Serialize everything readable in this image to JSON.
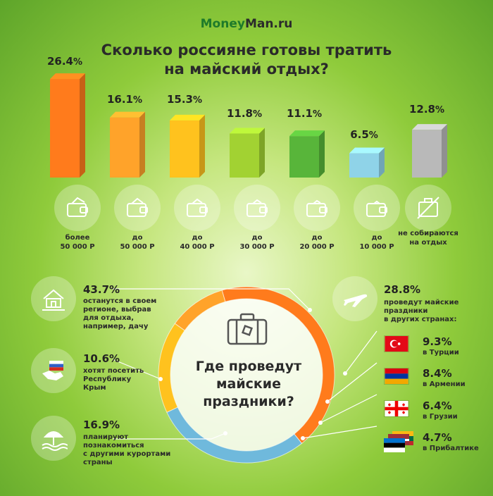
{
  "brand": {
    "part1": "Money",
    "part2": "Man.ru"
  },
  "title_line1": "Сколько россияне готовы тратить",
  "title_line2": "на майский отдых?",
  "colors": {
    "orange": "#ff7b1c",
    "lightorange": "#ffa32a",
    "yellow": "#ffc21e",
    "lightgreen": "#a2d232",
    "green": "#58b53a",
    "blue": "#8fd3e8",
    "gray": "#b9b9b9"
  },
  "chart_data": [
    {
      "type": "bar",
      "title": "Сколько россияне готовы тратить на майский отдых?",
      "categories": [
        {
          "line1": "более",
          "line2": "50 000 Р"
        },
        {
          "line1": "до",
          "line2": "50 000 Р"
        },
        {
          "line1": "до",
          "line2": "40 000 Р"
        },
        {
          "line1": "до",
          "line2": "30 000 Р"
        },
        {
          "line1": "до",
          "line2": "20 000 Р"
        },
        {
          "line1": "до",
          "line2": "10 000 Р"
        },
        {
          "line1": "не собираются",
          "line2": "на отдых"
        }
      ],
      "values": [
        26.4,
        16.1,
        15.3,
        11.8,
        11.1,
        6.5,
        12.8
      ],
      "value_labels": [
        {
          "num": "26.4",
          "unit": "%"
        },
        {
          "num": "16.1",
          "unit": "%"
        },
        {
          "num": "15.3",
          "unit": "%"
        },
        {
          "num": "11.8",
          "unit": "%"
        },
        {
          "num": "11.1",
          "unit": "%"
        },
        {
          "num": "6.5",
          "unit": "%"
        },
        {
          "num": "12.8",
          "unit": "%"
        }
      ],
      "icons": [
        "wallet-icon",
        "wallet-icon",
        "wallet-icon",
        "wallet-icon",
        "wallet-icon",
        "wallet-icon",
        "crossed-suitcase-icon"
      ]
    },
    {
      "type": "pie",
      "title": "Где проведут майские праздники?",
      "title_lines": [
        "Где проведут",
        "майские",
        "праздники?"
      ],
      "slices": [
        {
          "value": 43.7,
          "pct": "43.7%",
          "desc": [
            "останутся в своем",
            "регионе, выбрав",
            "для отдыха,",
            "например, дачу"
          ],
          "icon": "countryside-house-icon"
        },
        {
          "value": 28.8,
          "pct": "28.8%",
          "desc": [
            "проведут майские",
            "праздники",
            "в других странах:"
          ],
          "icon": "airplane-icon"
        },
        {
          "value": 16.9,
          "pct": "16.9%",
          "desc": [
            "планируют",
            "познакомиться",
            "с другими курортами",
            "страны"
          ],
          "icon": "beach-umbrella-icon"
        },
        {
          "value": 10.6,
          "pct": "10.6%",
          "desc": [
            "хотят посетить",
            "Республику",
            "Крым"
          ],
          "icon": "crimea-flag-icon"
        }
      ],
      "abroad": [
        {
          "pct": "9.3%",
          "label": "в Турции",
          "icon": "turkey-flag-icon"
        },
        {
          "pct": "8.4%",
          "label": "в Армении",
          "icon": "armenia-flag-icon"
        },
        {
          "pct": "6.4%",
          "label": "в Грузии",
          "icon": "georgia-flag-icon"
        },
        {
          "pct": "4.7%",
          "label": "в Прибалтике",
          "icon": "baltic-flags-icon"
        }
      ],
      "center_icon": "suitcase-icon"
    }
  ]
}
